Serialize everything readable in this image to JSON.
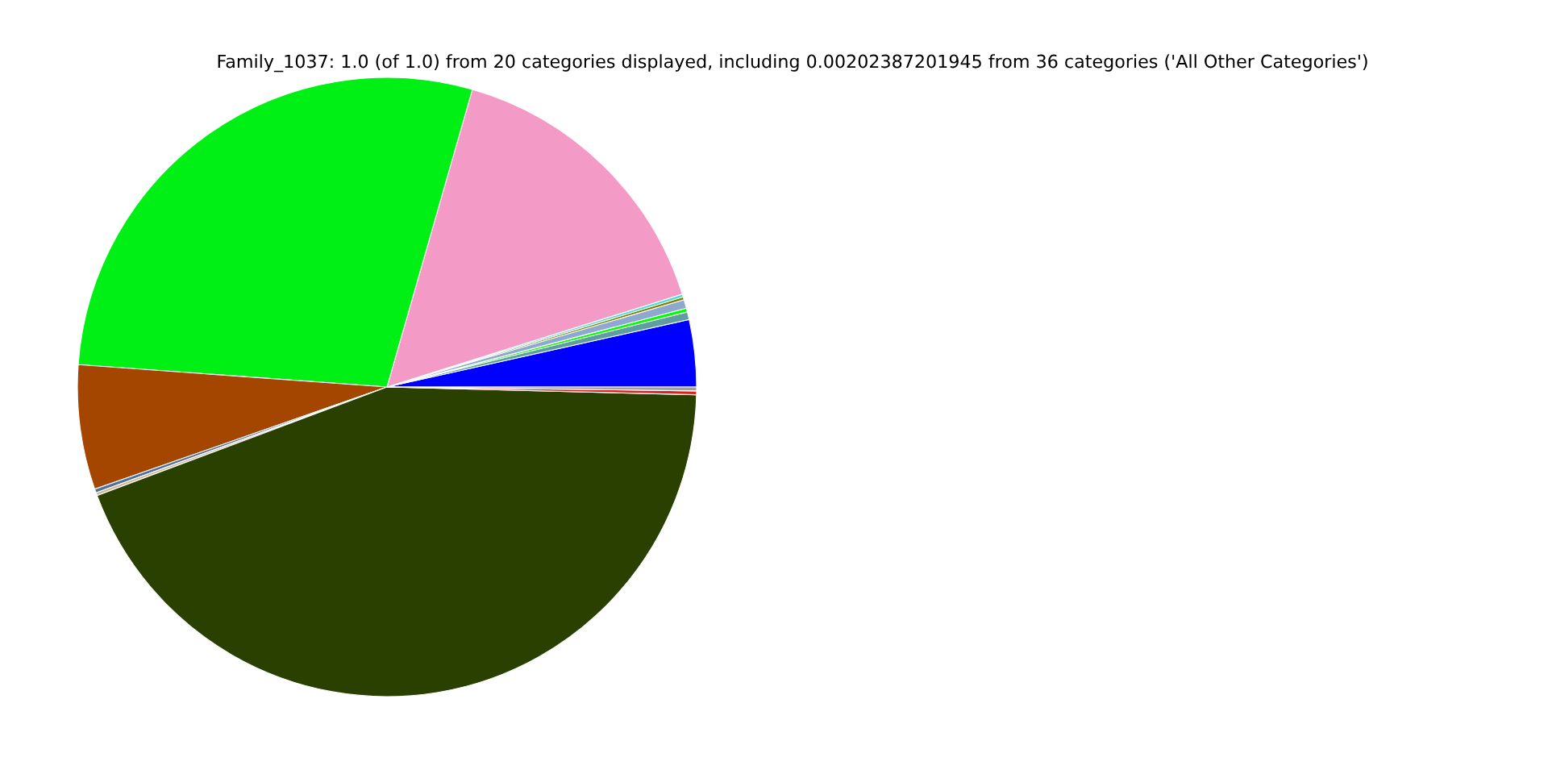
{
  "chart_data": {
    "type": "pie",
    "title": "Family_1037: 1.0 (of 1.0) from 20 categories displayed, including 0.00202387201945 from 36 categories ('All Other Categories')",
    "categories": [
      null,
      null,
      null,
      null,
      null,
      null,
      null,
      null,
      null,
      null,
      null,
      null,
      null,
      null
    ],
    "values": [
      3.5,
      0.4,
      0.2,
      0.45,
      0.15,
      0.15,
      15.7,
      28.3,
      6.5,
      0.2,
      0.15,
      43.9,
      0.2,
      0.2
    ],
    "colors": [
      "#0000ff",
      "#5f9ea0",
      "#00ff00",
      "#8fa8d0",
      "#808000",
      "#40e0d0",
      "#f49ac6",
      "#00f015",
      "#a44500",
      "#5070a0",
      "#d2b48c",
      "#2a4000",
      "#e0201a",
      "#a0a0a0"
    ],
    "legend": false
  }
}
